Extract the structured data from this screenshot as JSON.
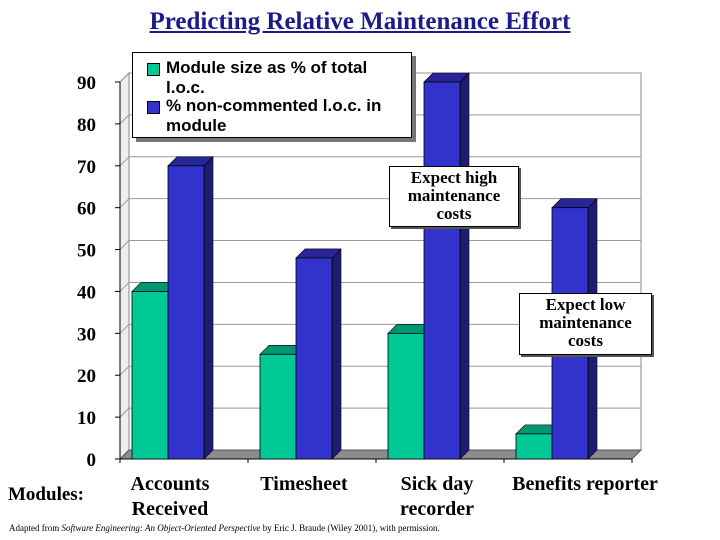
{
  "title": "Predicting Relative Maintenance Effort",
  "modules_label": "Modules:",
  "footnote": {
    "prefix": "Adapted from ",
    "book": "Software Engineering: An Object-Oriented Perspective",
    "suffix": " by Eric J. Braude (Wiley 2001), with permission."
  },
  "callouts": {
    "high": "Expect high maintenance costs",
    "low": "Expect low maintenance costs"
  },
  "colors": {
    "series1": "#00c896",
    "series2": "#3232cc"
  },
  "chart_data": {
    "type": "bar",
    "categories": [
      "Accounts Received",
      "Timesheet",
      "Sick day recorder",
      "Benefits reporter"
    ],
    "series": [
      {
        "name": "Module size as % of total l.o.c.",
        "values": [
          40,
          25,
          30,
          6
        ]
      },
      {
        "name": "% non-commented l.o.c. in module",
        "values": [
          70,
          48,
          90,
          60
        ]
      }
    ],
    "ylim": [
      0,
      90
    ],
    "yticks": [
      0,
      10,
      20,
      30,
      40,
      50,
      60,
      70,
      80,
      90
    ],
    "grid": true,
    "legend": "top-left",
    "three_d": true
  }
}
